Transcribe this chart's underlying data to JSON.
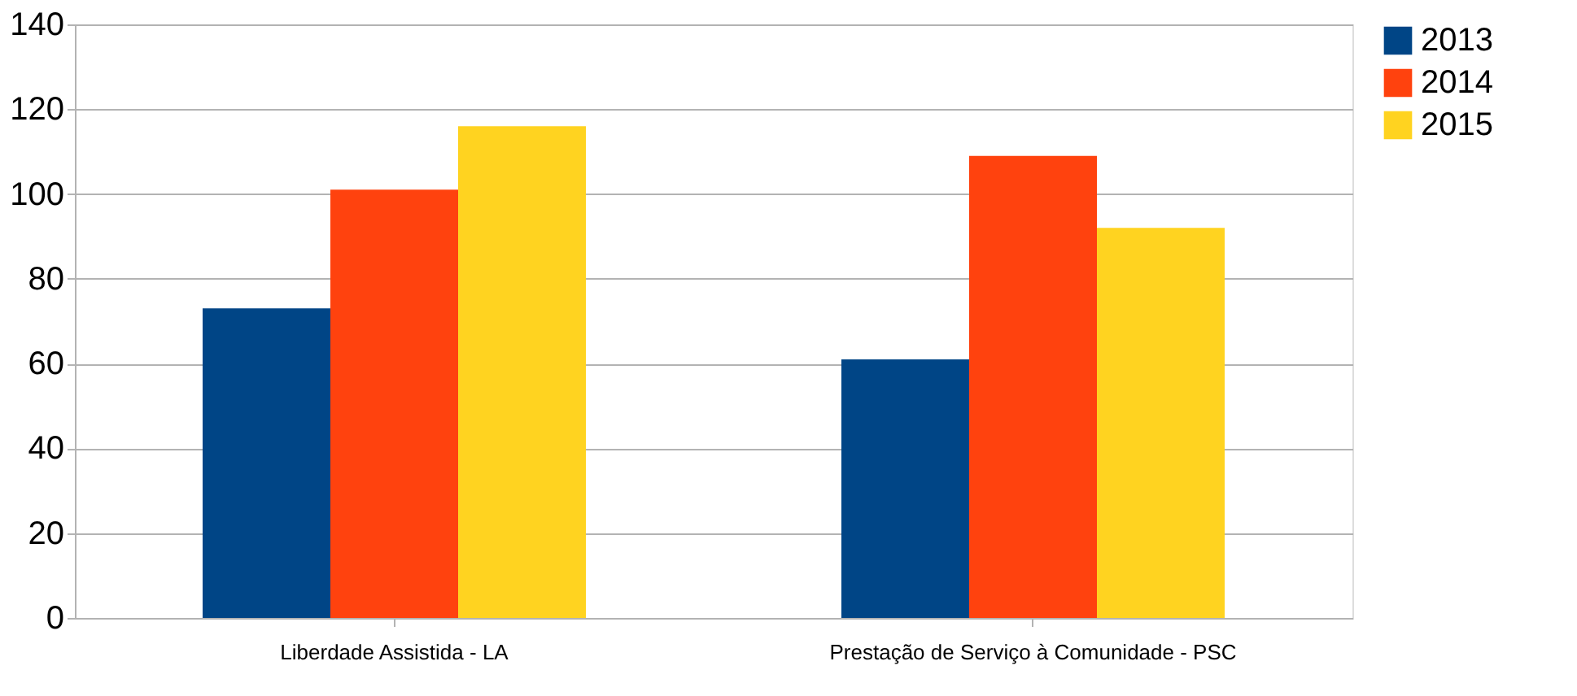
{
  "chart_data": {
    "type": "bar",
    "categories": [
      "Liberdade Assistida - LA",
      "Prestação de Serviço à Comunidade - PSC"
    ],
    "series": [
      {
        "name": "2013",
        "color": "#004586",
        "values": [
          73,
          61
        ]
      },
      {
        "name": "2014",
        "color": "#ff420e",
        "values": [
          101,
          109
        ]
      },
      {
        "name": "2015",
        "color": "#ffd320",
        "values": [
          116,
          92
        ]
      }
    ],
    "ylim": [
      0,
      140
    ],
    "yticks": [
      0,
      20,
      40,
      60,
      80,
      100,
      120,
      140
    ],
    "grid": "y",
    "legend": "right"
  }
}
